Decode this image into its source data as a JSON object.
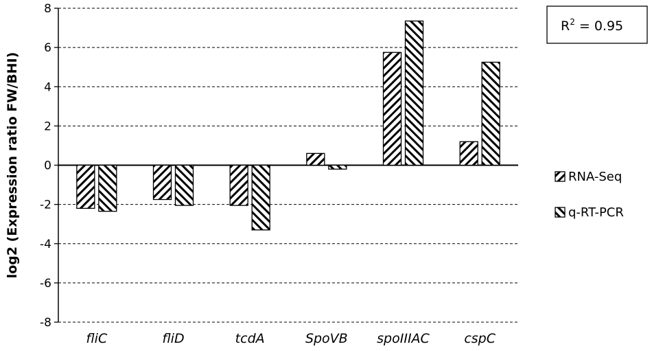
{
  "chart_data": {
    "type": "bar",
    "categories": [
      "fliC",
      "fliD",
      "tcdA",
      "SpoVB",
      "spoIIIAC",
      "cspC"
    ],
    "series": [
      {
        "name": "RNA-Seq",
        "values": [
          -2.2,
          -1.75,
          -2.05,
          0.6,
          5.75,
          1.2
        ]
      },
      {
        "name": "q-RT-PCR",
        "values": [
          -2.35,
          -2.05,
          -3.3,
          -0.2,
          7.35,
          5.25
        ]
      }
    ],
    "ylabel": "log2 (Expression ratio FW/BHI)",
    "ylim": [
      -8,
      8
    ],
    "yticks": [
      -8,
      -6,
      -4,
      -2,
      0,
      2,
      4,
      6,
      8
    ],
    "grid": "horizontal dashed",
    "legend": "right",
    "annotation": {
      "text": "R",
      "sup": "2",
      "rest": " = 0.95"
    }
  }
}
